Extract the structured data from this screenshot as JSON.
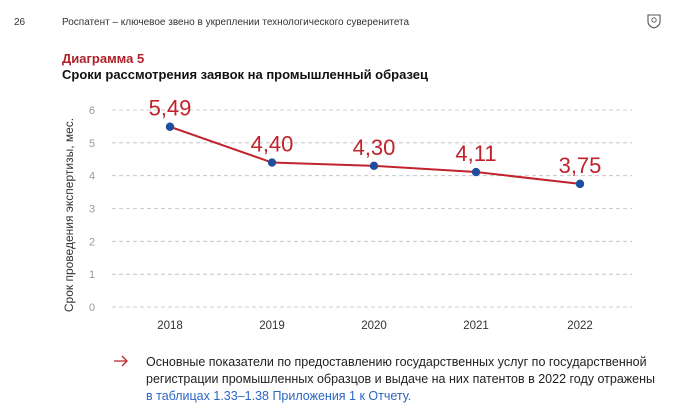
{
  "header": {
    "page_number": "26",
    "running_title": "Роспатент – ключевое звено в укреплении технологического суверенитета",
    "logo_icon": "emblem-shield-icon"
  },
  "chart_header": {
    "kicker": "Диаграмма 5",
    "title": "Сроки рассмотрения заявок на промышленный образец"
  },
  "chart_data": {
    "type": "line",
    "title": "Сроки рассмотрения заявок на промышленный образец",
    "xlabel": "",
    "ylabel": "Срок проведения экспертизы, мес.",
    "categories": [
      "2018",
      "2019",
      "2020",
      "2021",
      "2022"
    ],
    "values": [
      5.49,
      4.4,
      4.3,
      4.11,
      3.75
    ],
    "data_labels": [
      "5,49",
      "4,40",
      "4,30",
      "4,11",
      "3,75"
    ],
    "ylim": [
      0,
      6
    ],
    "yticks": [
      "0",
      "1",
      "2",
      "3",
      "4",
      "5",
      "6"
    ],
    "grid": "horizontal-dashed",
    "line_color": "#c0232c",
    "marker_color": "#1f4e9c",
    "label_color": "#c0232c"
  },
  "note": {
    "arrow_icon": "arrow-right-icon",
    "text": "Основные показатели по предоставлению государственных услуг по государственной регистрации промышленных образцов и выдаче на них патентов в 2022 году отражены",
    "link_text": "в таблицах 1.33–1.38 Приложения 1 к Отчету."
  }
}
